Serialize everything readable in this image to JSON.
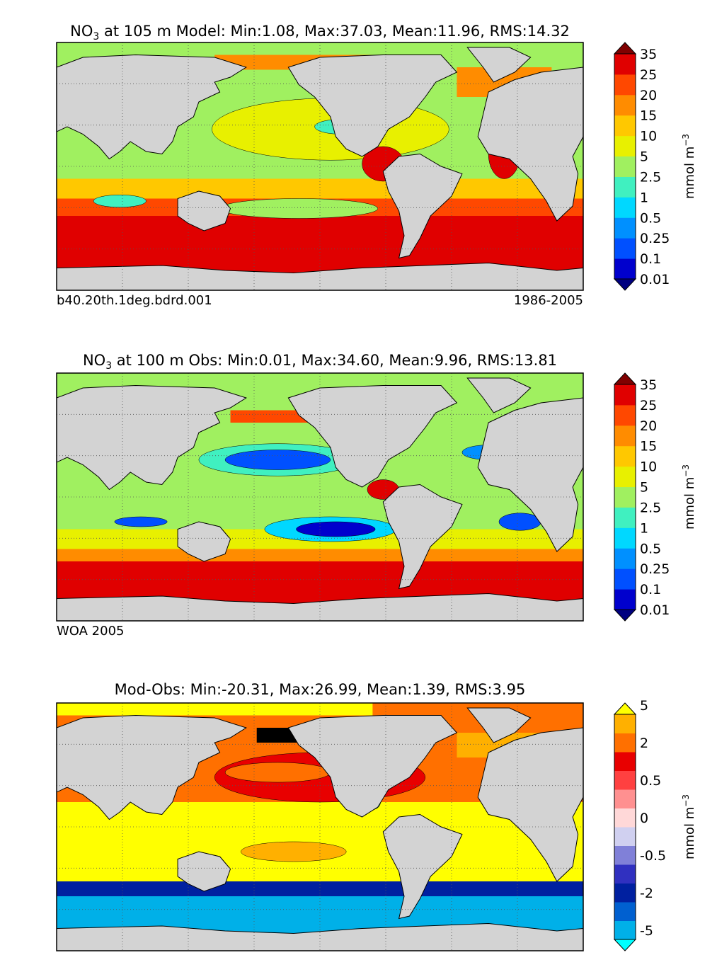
{
  "chart_data": [
    {
      "type": "heatmap",
      "variable": "NO",
      "subscript": "3",
      "title_rest": "at 105 m Model: Min:1.08, Max:37.03, Mean:11.96, RMS:14.32",
      "caption_left": "b40.20th.1deg.bdrd.001",
      "caption_right": "1986-2005",
      "colorbar": {
        "label": "mmol m",
        "label_exp": "−3",
        "levels": [
          "0.01",
          "0.1",
          "0.25",
          "0.5",
          "1",
          "2.5",
          "5",
          "10",
          "15",
          "20",
          "25",
          "35"
        ],
        "colors": [
          "#000080",
          "#0000cd",
          "#0050ff",
          "#0090ff",
          "#00d8ff",
          "#40f0c0",
          "#a0f060",
          "#e8f000",
          "#ffc800",
          "#ff8c00",
          "#ff4800",
          "#e00000",
          "#800000"
        ]
      }
    },
    {
      "type": "heatmap",
      "variable": "NO",
      "subscript": "3",
      "title_rest": "at 100 m Obs: Min:0.01, Max:34.60, Mean:9.96, RMS:13.81",
      "caption_left": "WOA 2005",
      "caption_right": "",
      "colorbar": {
        "label": "mmol m",
        "label_exp": "−3",
        "levels": [
          "0.01",
          "0.1",
          "0.25",
          "0.5",
          "1",
          "2.5",
          "5",
          "10",
          "15",
          "20",
          "25",
          "35"
        ],
        "colors": [
          "#000080",
          "#0000cd",
          "#0050ff",
          "#0090ff",
          "#00d8ff",
          "#40f0c0",
          "#a0f060",
          "#e8f000",
          "#ffc800",
          "#ff8c00",
          "#ff4800",
          "#e00000",
          "#800000"
        ]
      }
    },
    {
      "type": "heatmap",
      "variable": "",
      "subscript": "",
      "title_rest": "Mod-Obs: Min:-20.31, Max:26.99, Mean:1.39, RMS:3.95",
      "caption_left": "",
      "caption_right": "",
      "colorbar": {
        "label": "mmol m",
        "label_exp": "−3",
        "levels": [
          "-5",
          "",
          "-2",
          "",
          "-0.5",
          "",
          "0",
          "",
          "0.5",
          "",
          "2",
          "",
          "5"
        ],
        "colors": [
          "#00ffff",
          "#00b0e8",
          "#0060d0",
          "#0020a0",
          "#3030c0",
          "#8080d8",
          "#d0d0f0",
          "#ffd8d8",
          "#ff9090",
          "#ff4040",
          "#e80000",
          "#ff7000",
          "#ffb000",
          "#ffff00"
        ]
      }
    }
  ]
}
